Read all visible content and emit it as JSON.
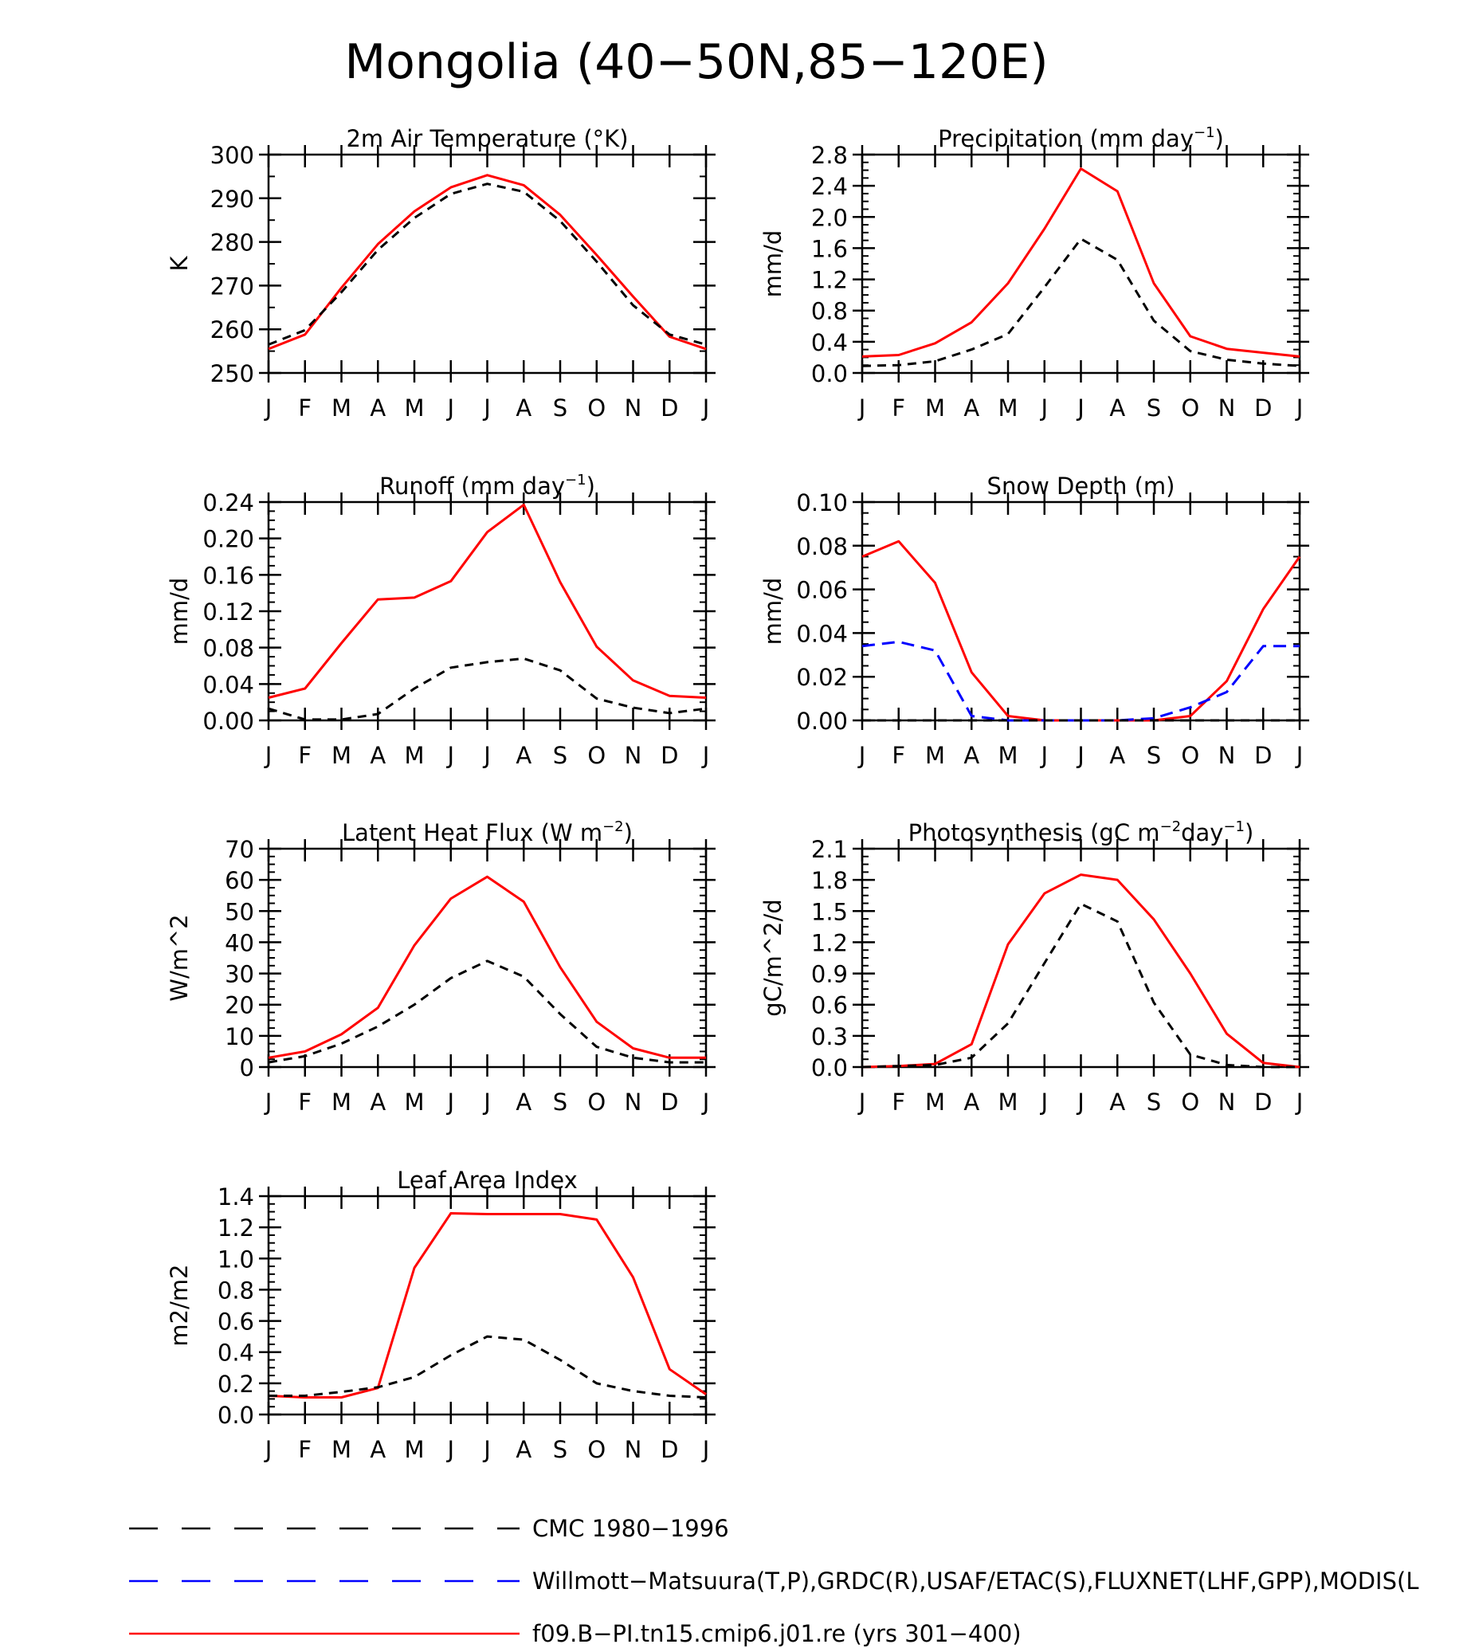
{
  "figure": {
    "title": "Mongolia (40−50N,85−120E)"
  },
  "legend": {
    "items": [
      {
        "label": "CMC 1980−1996",
        "color": "#000000",
        "dash": "long"
      },
      {
        "label": "Willmott−Matsuura(T,P),GRDC(R),USAF/ETAC(S),FLUXNET(LHF,GPP),MODIS(L",
        "color": "#0000ff",
        "dash": "long"
      },
      {
        "label": "f09.B−PI.tn15.cmip6.j01.re (yrs 301−400)",
        "color": "#ff0000",
        "dash": "solid"
      }
    ]
  },
  "colors": {
    "model": "#ff0000",
    "cmc": "#000000",
    "obs": "#0000ff"
  },
  "chart_data": [
    {
      "id": "temp",
      "type": "line",
      "title_parts": [
        {
          "t": "2m Air Temperature (°K)"
        }
      ],
      "ylabel": "K",
      "ylim": [
        250,
        300
      ],
      "yticks": [
        "250",
        "260",
        "270",
        "280",
        "290",
        "300"
      ],
      "ytick_values": [
        250,
        260,
        270,
        280,
        290,
        300
      ],
      "y_minor": 5,
      "categories": [
        "J",
        "F",
        "M",
        "A",
        "M",
        "J",
        "J",
        "A",
        "S",
        "O",
        "N",
        "D",
        "J"
      ],
      "series": [
        {
          "role": "model",
          "values": [
            255.5,
            258.8,
            269.5,
            279.5,
            287.0,
            292.5,
            295.3,
            293.0,
            286.2,
            277.0,
            267.5,
            258.3,
            255.5
          ]
        },
        {
          "role": "cmc",
          "values": [
            256.5,
            259.8,
            268.5,
            278.2,
            285.5,
            291.0,
            293.3,
            291.5,
            284.8,
            275.5,
            265.5,
            258.8,
            256.5
          ]
        }
      ]
    },
    {
      "id": "precip",
      "type": "line",
      "title_parts": [
        {
          "t": "Precipitation (mm day"
        },
        {
          "t": "−1",
          "sup": true
        },
        {
          "t": ")"
        }
      ],
      "ylabel": "mm/d",
      "ylim": [
        0,
        2.8
      ],
      "yticks": [
        "0.0",
        "0.4",
        "0.8",
        "1.2",
        "1.6",
        "2.0",
        "2.4",
        "2.8"
      ],
      "ytick_values": [
        0,
        0.4,
        0.8,
        1.2,
        1.6,
        2.0,
        2.4,
        2.8
      ],
      "y_minor": 0.1,
      "categories": [
        "J",
        "F",
        "M",
        "A",
        "M",
        "J",
        "J",
        "A",
        "S",
        "O",
        "N",
        "D",
        "J"
      ],
      "series": [
        {
          "role": "model",
          "values": [
            0.21,
            0.23,
            0.38,
            0.65,
            1.15,
            1.85,
            2.62,
            2.33,
            1.15,
            0.47,
            0.31,
            0.26,
            0.21
          ]
        },
        {
          "role": "cmc",
          "values": [
            0.09,
            0.1,
            0.15,
            0.3,
            0.5,
            1.1,
            1.72,
            1.45,
            0.67,
            0.28,
            0.17,
            0.12,
            0.09
          ]
        }
      ]
    },
    {
      "id": "runoff",
      "type": "line",
      "title_parts": [
        {
          "t": "Runoff (mm day"
        },
        {
          "t": "−1",
          "sup": true
        },
        {
          "t": ")"
        }
      ],
      "ylabel": "mm/d",
      "ylim": [
        0,
        0.24
      ],
      "yticks": [
        "0.00",
        "0.04",
        "0.08",
        "0.12",
        "0.16",
        "0.20",
        "0.24"
      ],
      "ytick_values": [
        0,
        0.04,
        0.08,
        0.12,
        0.16,
        0.2,
        0.24
      ],
      "y_minor": 0.01,
      "categories": [
        "J",
        "F",
        "M",
        "A",
        "M",
        "J",
        "J",
        "A",
        "S",
        "O",
        "N",
        "D",
        "J"
      ],
      "series": [
        {
          "role": "model",
          "values": [
            0.025,
            0.035,
            0.085,
            0.133,
            0.135,
            0.153,
            0.207,
            0.237,
            0.152,
            0.081,
            0.044,
            0.027,
            0.025
          ]
        },
        {
          "role": "cmc",
          "values": [
            0.013,
            0.001,
            0.001,
            0.007,
            0.035,
            0.058,
            0.064,
            0.068,
            0.055,
            0.024,
            0.014,
            0.008,
            0.013
          ]
        }
      ]
    },
    {
      "id": "snow",
      "type": "line",
      "title_parts": [
        {
          "t": "Snow Depth (m)"
        }
      ],
      "ylabel": "mm/d",
      "ylim": [
        0,
        0.1
      ],
      "yticks": [
        "0.00",
        "0.02",
        "0.04",
        "0.06",
        "0.08",
        "0.10"
      ],
      "ytick_values": [
        0,
        0.02,
        0.04,
        0.06,
        0.08,
        0.1
      ],
      "y_minor": 0.005,
      "categories": [
        "J",
        "F",
        "M",
        "A",
        "M",
        "J",
        "J",
        "A",
        "S",
        "O",
        "N",
        "D",
        "J"
      ],
      "series": [
        {
          "role": "model",
          "values": [
            0.075,
            0.082,
            0.063,
            0.022,
            0.002,
            0.0,
            0.0,
            0.0,
            0.0,
            0.002,
            0.018,
            0.051,
            0.075
          ]
        },
        {
          "role": "obs",
          "values": [
            0.034,
            0.036,
            0.032,
            0.002,
            0.0,
            0.0,
            0.0,
            0.0,
            0.001,
            0.006,
            0.013,
            0.034,
            0.034
          ]
        },
        {
          "role": "cmc",
          "values": [
            0.0,
            0.0,
            0.0,
            0.0,
            0.0,
            0.0,
            0.0,
            0.0,
            0.0,
            0.0,
            0.0,
            0.0,
            0.0
          ]
        }
      ]
    },
    {
      "id": "lhf",
      "type": "line",
      "title_parts": [
        {
          "t": "Latent Heat Flux (W m"
        },
        {
          "t": "−2",
          "sup": true
        },
        {
          "t": ")"
        }
      ],
      "ylabel": "W/m^2",
      "ylim": [
        0,
        70
      ],
      "yticks": [
        "0",
        "10",
        "20",
        "30",
        "40",
        "50",
        "60",
        "70"
      ],
      "ytick_values": [
        0,
        10,
        20,
        30,
        40,
        50,
        60,
        70
      ],
      "y_minor": 2.5,
      "categories": [
        "J",
        "F",
        "M",
        "A",
        "M",
        "J",
        "J",
        "A",
        "S",
        "O",
        "N",
        "D",
        "J"
      ],
      "series": [
        {
          "role": "model",
          "values": [
            3.0,
            5.0,
            10.5,
            19.0,
            39.0,
            54.0,
            61.0,
            53.0,
            32.0,
            14.5,
            6.0,
            3.0,
            3.0
          ]
        },
        {
          "role": "cmc",
          "values": [
            1.5,
            3.5,
            7.5,
            13.0,
            20.0,
            28.5,
            34.0,
            29.0,
            17.0,
            6.5,
            3.0,
            1.5,
            1.5
          ]
        }
      ]
    },
    {
      "id": "gpp",
      "type": "line",
      "title_parts": [
        {
          "t": "Photosynthesis (gC m"
        },
        {
          "t": "−2",
          "sup": true
        },
        {
          "t": "day"
        },
        {
          "t": "−1",
          "sup": true
        },
        {
          "t": ")"
        }
      ],
      "ylabel": "gC/m^2/d",
      "ylim": [
        0,
        2.1
      ],
      "yticks": [
        "0.0",
        "0.3",
        "0.6",
        "0.9",
        "1.2",
        "1.5",
        "1.8",
        "2.1"
      ],
      "ytick_values": [
        0,
        0.3,
        0.6,
        0.9,
        1.2,
        1.5,
        1.8,
        2.1
      ],
      "y_minor": 0.075,
      "categories": [
        "J",
        "F",
        "M",
        "A",
        "M",
        "J",
        "J",
        "A",
        "S",
        "O",
        "N",
        "D",
        "J"
      ],
      "series": [
        {
          "role": "model",
          "values": [
            0.0,
            0.01,
            0.03,
            0.22,
            1.18,
            1.67,
            1.85,
            1.8,
            1.42,
            0.9,
            0.32,
            0.04,
            0.0
          ]
        },
        {
          "role": "cmc",
          "values": [
            0.0,
            0.01,
            0.02,
            0.09,
            0.42,
            1.0,
            1.57,
            1.4,
            0.62,
            0.12,
            0.02,
            0.0,
            0.0
          ]
        }
      ]
    },
    {
      "id": "lai",
      "type": "line",
      "title_parts": [
        {
          "t": "Leaf Area Index"
        }
      ],
      "ylabel": "m2/m2",
      "ylim": [
        0,
        1.4
      ],
      "yticks": [
        "0.0",
        "0.2",
        "0.4",
        "0.6",
        "0.8",
        "1.0",
        "1.2",
        "1.4"
      ],
      "ytick_values": [
        0,
        0.2,
        0.4,
        0.6,
        0.8,
        1.0,
        1.2,
        1.4
      ],
      "y_minor": 0.05,
      "categories": [
        "J",
        "F",
        "M",
        "A",
        "M",
        "J",
        "J",
        "A",
        "S",
        "O",
        "N",
        "D",
        "J"
      ],
      "series": [
        {
          "role": "model",
          "values": [
            0.12,
            0.11,
            0.11,
            0.17,
            0.94,
            1.29,
            1.285,
            1.285,
            1.285,
            1.25,
            0.88,
            0.29,
            0.13
          ]
        },
        {
          "role": "cmc",
          "values": [
            0.12,
            0.12,
            0.145,
            0.175,
            0.24,
            0.38,
            0.5,
            0.48,
            0.35,
            0.2,
            0.15,
            0.12,
            0.11
          ]
        }
      ]
    }
  ]
}
